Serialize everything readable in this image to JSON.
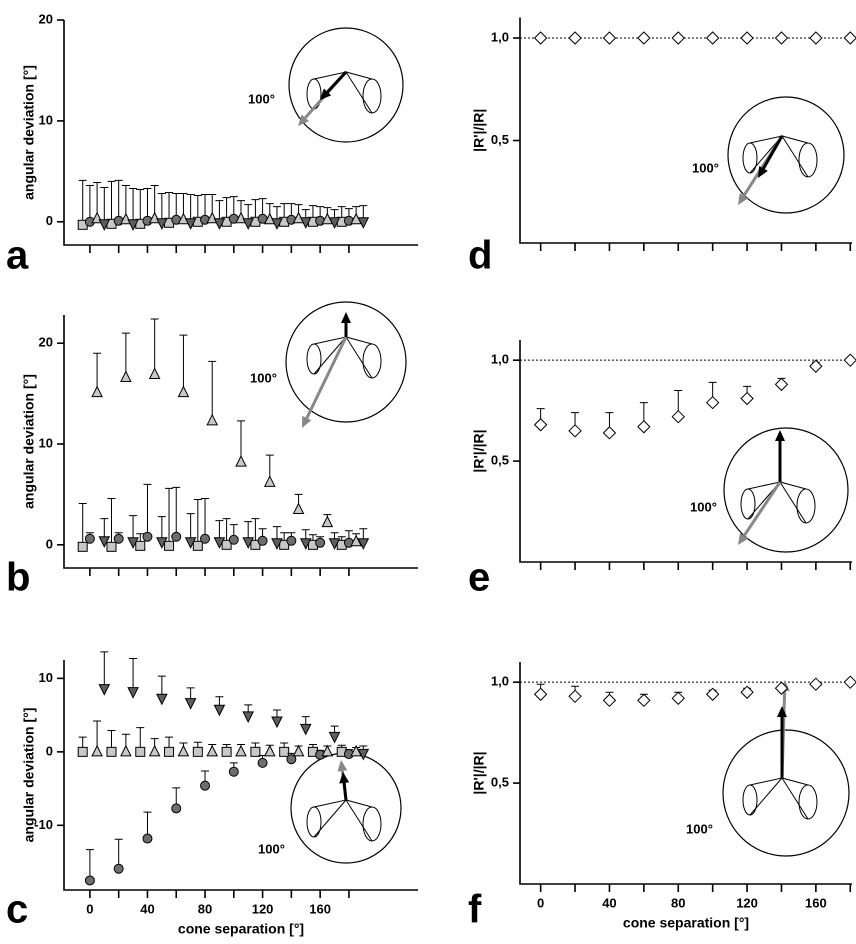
{
  "chart_data": [
    {
      "type": "scatter",
      "label": "a",
      "ylabel": "angular deviation [°]",
      "annotation": "100°",
      "xlim": [
        -18,
        228
      ],
      "ylim": [
        -2.3,
        20
      ],
      "xticks": [
        0,
        40,
        80,
        120,
        160
      ],
      "xminor": [
        20,
        60,
        100,
        140,
        180
      ],
      "xtick_labels": false,
      "yticks": [
        0,
        10,
        20
      ],
      "series": [
        {
          "marker": "square",
          "color": "#c8c8c8",
          "x": [
            -5,
            15,
            35,
            55,
            75,
            95,
            115,
            135,
            155,
            175
          ],
          "values": [
            -0.3,
            -0.2,
            -0.2,
            -0.1,
            0,
            0,
            0,
            0,
            0,
            0
          ],
          "errors": [
            4.4,
            4.2,
            3.4,
            3.0,
            2.6,
            2.4,
            2.2,
            1.8,
            1.6,
            1.5
          ]
        },
        {
          "marker": "circle",
          "color": "#6e6e6e",
          "x": [
            0,
            20,
            40,
            60,
            80,
            100,
            120,
            140,
            160,
            180
          ],
          "values": [
            0,
            0.1,
            0.1,
            0.2,
            0.2,
            0.3,
            0.3,
            0.2,
            0.1,
            0.1
          ],
          "errors": [
            3.6,
            4.0,
            3.2,
            2.6,
            2.5,
            2.2,
            2.0,
            1.6,
            1.4,
            1.2
          ]
        },
        {
          "marker": "triangle-up",
          "color": "#c8c8c8",
          "x": [
            5,
            25,
            45,
            65,
            85,
            105,
            125,
            145,
            165,
            185
          ],
          "values": [
            0.3,
            0.2,
            0.3,
            0.2,
            0.3,
            0.3,
            0.2,
            0.3,
            0.2,
            0.2
          ],
          "errors": [
            3.6,
            3.4,
            3.3,
            2.6,
            2.4,
            1.8,
            1.6,
            1.4,
            1.2,
            1.3
          ]
        },
        {
          "marker": "triangle-down",
          "color": "#5e5e5e",
          "x": [
            10,
            30,
            50,
            70,
            90,
            110,
            130,
            150,
            170,
            190
          ],
          "values": [
            -0.2,
            -0.2,
            -0.1,
            -0.1,
            -0.1,
            -0.1,
            -0.1,
            0,
            0,
            0
          ],
          "errors": [
            3.6,
            3.5,
            2.9,
            2.8,
            2.2,
            1.8,
            1.6,
            1.2,
            1.2,
            1.6
          ]
        }
      ]
    },
    {
      "type": "scatter",
      "label": "b",
      "ylabel": "angular deviation [°]",
      "annotation": "100°",
      "xlim": [
        -18,
        228
      ],
      "ylim": [
        -2.3,
        22.8
      ],
      "xticks": [
        0,
        40,
        80,
        120,
        160
      ],
      "xminor": [
        20,
        60,
        100,
        140,
        180
      ],
      "xtick_labels": false,
      "yticks": [
        0,
        10,
        20
      ],
      "series": [
        {
          "marker": "square",
          "color": "#c8c8c8",
          "x": [
            -5,
            15,
            35,
            55,
            75,
            95,
            115,
            135,
            155,
            175
          ],
          "values": [
            -0.2,
            -0.2,
            -0.1,
            -0.1,
            -0.1,
            0,
            0,
            0,
            0,
            0
          ],
          "errors": [
            4.3,
            4.8,
            1.2,
            5.7,
            4.6,
            2.6,
            2.6,
            1.2,
            1.0,
            0.8
          ]
        },
        {
          "marker": "circle",
          "color": "#6e6e6e",
          "x": [
            0,
            20,
            40,
            60,
            80,
            100,
            120,
            140,
            160,
            180
          ],
          "values": [
            0.6,
            0.6,
            0.8,
            0.8,
            0.6,
            0.5,
            0.4,
            0.4,
            0.2,
            0.2
          ],
          "errors": [
            0.6,
            0.6,
            5.2,
            4.9,
            4.0,
            1.5,
            1.2,
            0.8,
            0.6,
            1.2
          ]
        },
        {
          "marker": "triangle-up",
          "color": "#c8c8c8",
          "x": [
            5,
            25,
            45,
            65,
            85,
            105,
            125,
            145,
            165,
            185
          ],
          "values": [
            15.1,
            16.6,
            16.9,
            15.1,
            12.3,
            8.2,
            6.2,
            3.5,
            2.2,
            0.3
          ],
          "errors": [
            3.9,
            4.4,
            5.5,
            5.7,
            5.9,
            4.1,
            2.7,
            1.5,
            0.8,
            0.8
          ]
        },
        {
          "marker": "triangle-down",
          "color": "#5e5e5e",
          "x": [
            10,
            30,
            50,
            70,
            90,
            110,
            130,
            150,
            170,
            190
          ],
          "values": [
            0.4,
            0.3,
            0.3,
            0.3,
            0.3,
            0.3,
            0.2,
            0.2,
            0.2,
            0.2
          ],
          "errors": [
            2.2,
            2.6,
            2.5,
            2.8,
            2.1,
            2.0,
            1.6,
            1.3,
            1.0,
            1.4
          ]
        }
      ]
    },
    {
      "type": "scatter",
      "label": "c",
      "ylabel": "angular deviation [°]",
      "xlabel": "cone separation [°]",
      "annotation": "100°",
      "xlim": [
        -18,
        228
      ],
      "ylim": [
        -18.8,
        12.5
      ],
      "xticks": [
        0,
        40,
        80,
        120,
        160
      ],
      "xminor": [
        20,
        60,
        100,
        140,
        180
      ],
      "xtick_labels": true,
      "yticks": [
        -10,
        0,
        10
      ],
      "series": [
        {
          "marker": "square",
          "color": "#c8c8c8",
          "x": [
            -5,
            15,
            35,
            55,
            75,
            95,
            115,
            135,
            155,
            175
          ],
          "values": [
            0,
            0,
            0,
            0,
            0,
            0,
            0,
            0,
            0,
            0
          ],
          "errors": [
            2.0,
            2.9,
            3.3,
            2.0,
            1.3,
            1.0,
            1.2,
            1.2,
            1.0,
            0.9
          ]
        },
        {
          "marker": "circle",
          "color": "#6e6e6e",
          "x": [
            0,
            20,
            40,
            60,
            80,
            100,
            120,
            140,
            160,
            180
          ],
          "values": [
            -17.5,
            -15.9,
            -11.8,
            -7.7,
            -4.6,
            -2.7,
            -1.5,
            -1.0,
            -0.4,
            -0.3
          ],
          "errors": [
            4.2,
            4.0,
            3.6,
            2.8,
            2.0,
            1.2,
            1.0,
            0.8,
            0.6,
            0.6
          ]
        },
        {
          "marker": "triangle-up",
          "color": "#c8c8c8",
          "x": [
            5,
            25,
            45,
            65,
            85,
            105,
            125,
            145,
            165,
            185
          ],
          "values": [
            0,
            0,
            0,
            0,
            0,
            0,
            0,
            0,
            0,
            0
          ],
          "errors": [
            4.2,
            2.4,
            1.8,
            1.2,
            1.0,
            1.0,
            0.9,
            0.8,
            0.8,
            0.6
          ]
        },
        {
          "marker": "triangle-down",
          "color": "#5e5e5e",
          "x": [
            10,
            30,
            50,
            70,
            90,
            110,
            130,
            150,
            170,
            190
          ],
          "values": [
            8.6,
            8.2,
            7.3,
            6.7,
            5.8,
            4.9,
            4.2,
            3.2,
            2.1,
            -0.2
          ],
          "errors": [
            5.0,
            4.5,
            3.0,
            2.0,
            1.7,
            1.5,
            1.5,
            1.6,
            1.4,
            1.0
          ]
        }
      ]
    },
    {
      "type": "scatter",
      "label": "d",
      "ylabel": "|R'|/|R|",
      "annotation": "100°",
      "xlim": [
        -12,
        181
      ],
      "ylim": [
        0,
        1.1
      ],
      "xticks": [
        0,
        40,
        80,
        120,
        160
      ],
      "xminor": [
        20,
        60,
        100,
        140,
        180
      ],
      "xtick_labels": false,
      "yticks": [
        {
          "value": 0.5,
          "label": "0,5"
        },
        {
          "value": 1,
          "label": "1,0"
        }
      ],
      "reference_line": 1,
      "series": [
        {
          "marker": "diamond",
          "color": "#ffffff",
          "x": [
            0,
            20,
            40,
            60,
            80,
            100,
            120,
            140,
            160,
            180
          ],
          "values": [
            1,
            1,
            1,
            1,
            1,
            1,
            1,
            1,
            1,
            1
          ]
        }
      ]
    },
    {
      "type": "scatter",
      "label": "e",
      "ylabel": "|R'|/|R|",
      "annotation": "100°",
      "xlim": [
        -12,
        181
      ],
      "ylim": [
        0,
        1.1
      ],
      "xticks": [
        0,
        40,
        80,
        120,
        160
      ],
      "xminor": [
        20,
        60,
        100,
        140,
        180
      ],
      "xtick_labels": false,
      "yticks": [
        {
          "value": 0.5,
          "label": "0,5"
        },
        {
          "value": 1,
          "label": "1,0"
        }
      ],
      "reference_line": 1,
      "series": [
        {
          "marker": "diamond",
          "color": "#ffffff",
          "x": [
            0,
            20,
            40,
            60,
            80,
            100,
            120,
            140,
            160,
            180
          ],
          "values": [
            0.68,
            0.65,
            0.64,
            0.67,
            0.72,
            0.79,
            0.81,
            0.88,
            0.97,
            1.0
          ],
          "errors": [
            0.08,
            0.09,
            0.1,
            0.12,
            0.13,
            0.1,
            0.06,
            0.03,
            0.02,
            0
          ]
        }
      ]
    },
    {
      "type": "scatter",
      "label": "f",
      "ylabel": "|R'|/|R|",
      "xlabel": "cone separation [°]",
      "annotation": "100°",
      "xlim": [
        -12,
        181
      ],
      "ylim": [
        0,
        1.1
      ],
      "xticks": [
        0,
        40,
        80,
        120,
        160
      ],
      "xminor": [
        20,
        60,
        100,
        140,
        180
      ],
      "xtick_labels": true,
      "yticks": [
        {
          "value": 0.5,
          "label": "0,5"
        },
        {
          "value": 1,
          "label": "1,0"
        }
      ],
      "reference_line": 1,
      "series": [
        {
          "marker": "diamond",
          "color": "#ffffff",
          "x": [
            0,
            20,
            40,
            60,
            80,
            100,
            120,
            140,
            160,
            180
          ],
          "values": [
            0.94,
            0.93,
            0.91,
            0.91,
            0.92,
            0.94,
            0.95,
            0.97,
            0.99,
            1.0
          ],
          "errors": [
            0.05,
            0.05,
            0.04,
            0.03,
            0.03,
            0.02,
            0.02,
            0.01,
            0.01,
            0
          ]
        }
      ]
    }
  ]
}
